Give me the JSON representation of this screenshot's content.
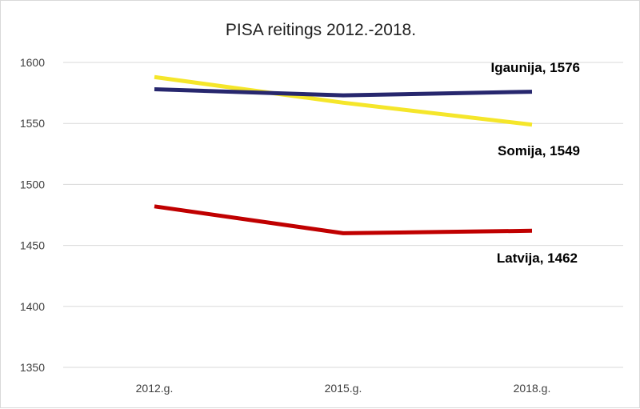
{
  "chart_data": {
    "type": "line",
    "title": "PISA reitings 2012.-2018.",
    "categories": [
      "2012.g.",
      "2015.g.",
      "2018.g."
    ],
    "ylim": [
      1350,
      1600
    ],
    "yticks": [
      1350,
      1400,
      1450,
      1500,
      1550,
      1600
    ],
    "grid": true,
    "legend": "none",
    "series": [
      {
        "key": "latvija",
        "values": [
          1482,
          1460,
          1462
        ],
        "color": "#c00000",
        "end_label": "Latvija, 1462"
      },
      {
        "key": "somija",
        "values": [
          1588,
          1567,
          1549
        ],
        "color": "#f5e62a",
        "end_label": "Somija, 1549"
      },
      {
        "key": "igaunija",
        "values": [
          1578,
          1573,
          1576
        ],
        "color": "#27276e",
        "end_label": "Igaunija, 1576"
      }
    ]
  }
}
